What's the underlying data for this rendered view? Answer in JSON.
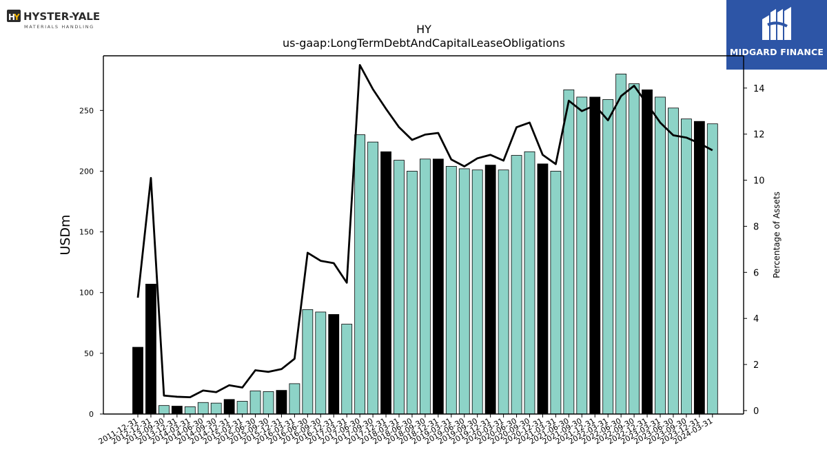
{
  "logos": {
    "left_brand": "HYSTER-YALE",
    "left_tagline": "MATERIALS HANDLING",
    "right_brand": "MIDGARD FINANCE"
  },
  "colors": {
    "bar_default": "#8dd3c7",
    "bar_highlight": "#000000",
    "line": "#000000",
    "brand_blue": "#2d55a6"
  },
  "chart_data": {
    "type": "bar",
    "title": "HY",
    "subtitle": "us-gaap:LongTermDebtAndCapitalLeaseObligations",
    "ylabel": "USDm",
    "y2label": "Percentage of Assets",
    "ylim": [
      0,
      295
    ],
    "y2lim": [
      -0.15,
      15.4
    ],
    "yticks": [
      0,
      50,
      100,
      150,
      200,
      250
    ],
    "y2ticks": [
      0,
      2,
      4,
      6,
      8,
      10,
      12,
      14
    ],
    "grid": false,
    "categories": [
      "2011-12-31",
      "2012-12-31",
      "2013-09-30",
      "2013-12-31",
      "2014-03-31",
      "2014-06-30",
      "2014-09-30",
      "2014-12-31",
      "2015-03-31",
      "2015-06-30",
      "2015-09-30",
      "2015-12-31",
      "2016-03-31",
      "2016-06-30",
      "2016-09-30",
      "2016-12-31",
      "2017-03-31",
      "2017-06-30",
      "2017-09-30",
      "2017-12-31",
      "2018-03-31",
      "2018-06-30",
      "2018-09-30",
      "2018-12-31",
      "2019-03-31",
      "2019-06-30",
      "2019-09-30",
      "2019-12-31",
      "2020-03-31",
      "2020-06-30",
      "2020-09-30",
      "2020-12-31",
      "2021-03-31",
      "2021-06-30",
      "2021-09-30",
      "2021-12-31",
      "2022-03-31",
      "2022-06-30",
      "2022-09-30",
      "2022-12-31",
      "2023-03-31",
      "2023-06-30",
      "2023-09-30",
      "2023-12-31",
      "2024-03-31"
    ],
    "series": [
      {
        "type": "bar",
        "values": [
          55,
          107,
          7,
          6.5,
          6,
          9.5,
          9,
          12,
          10.5,
          19,
          18.5,
          19.5,
          25,
          86,
          84,
          82,
          74,
          230,
          224,
          216,
          209,
          200,
          210,
          210,
          204,
          202,
          201,
          205,
          201,
          213,
          216,
          206,
          200,
          267,
          261,
          261,
          259,
          280,
          272,
          267,
          261,
          252,
          243,
          241,
          239
        ],
        "highlight": [
          true,
          true,
          false,
          true,
          false,
          false,
          false,
          true,
          false,
          false,
          false,
          true,
          false,
          false,
          false,
          true,
          false,
          false,
          false,
          true,
          false,
          false,
          false,
          true,
          false,
          false,
          false,
          true,
          false,
          false,
          false,
          true,
          false,
          false,
          false,
          true,
          false,
          false,
          false,
          true,
          false,
          false,
          false,
          true,
          false
        ]
      },
      {
        "type": "line",
        "axis": "right",
        "values": [
          4.9,
          10.1,
          0.65,
          0.6,
          0.58,
          0.87,
          0.8,
          1.1,
          1.0,
          1.75,
          1.68,
          1.8,
          2.25,
          6.85,
          6.5,
          6.4,
          5.55,
          15.0,
          13.95,
          13.1,
          12.3,
          11.75,
          11.98,
          12.05,
          10.9,
          10.6,
          10.95,
          11.1,
          10.85,
          12.3,
          12.5,
          11.1,
          10.7,
          13.45,
          13.0,
          13.25,
          12.6,
          13.65,
          14.1,
          13.3,
          12.5,
          11.95,
          11.85,
          11.6,
          11.3
        ]
      }
    ]
  }
}
